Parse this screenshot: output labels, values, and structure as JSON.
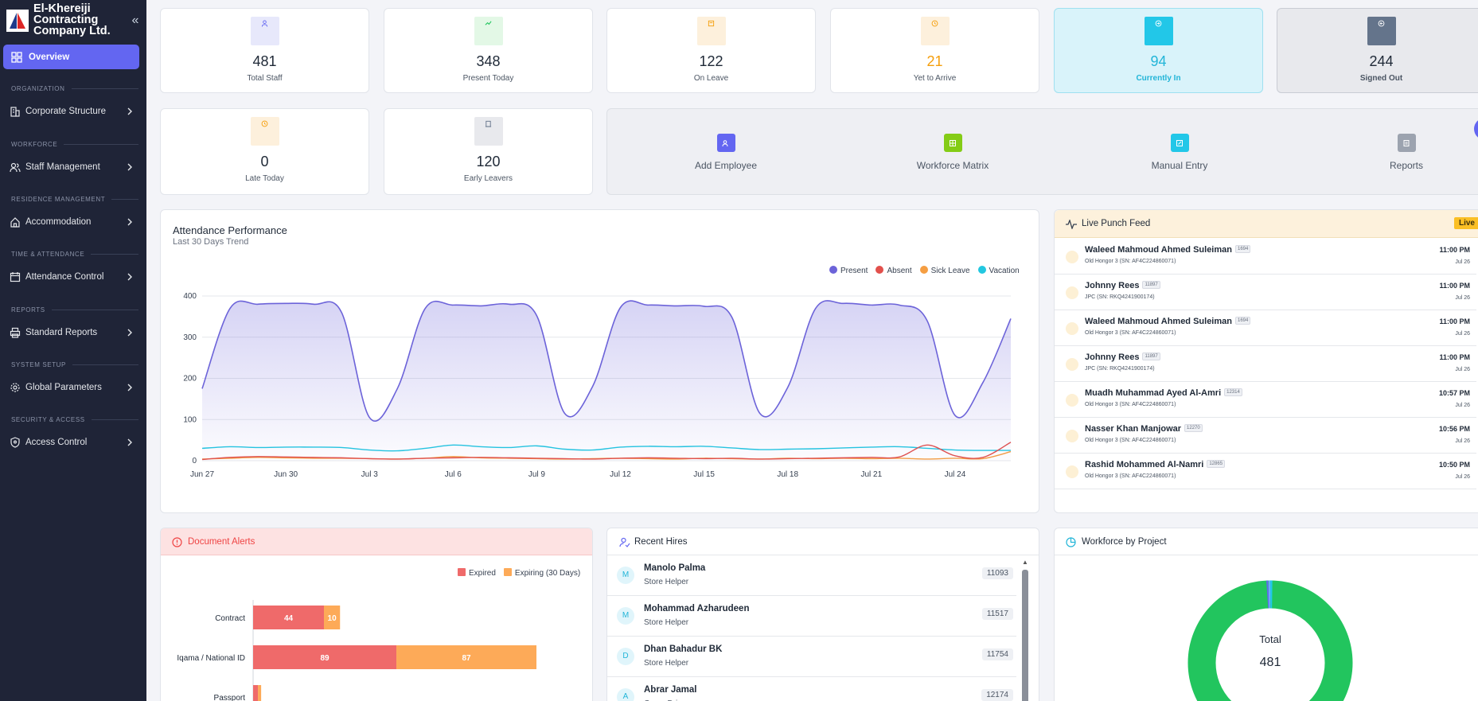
{
  "brand": {
    "name": "El-Khereiji Contracting Company Ltd."
  },
  "sidebar": {
    "active": {
      "label": "Overview",
      "icon": "grid-icon"
    },
    "sections": [
      {
        "heading": "ORGANIZATION",
        "item": "Corporate Structure",
        "icon": "building-icon"
      },
      {
        "heading": "WORKFORCE",
        "item": "Staff Management",
        "icon": "users-icon"
      },
      {
        "heading": "RESIDENCE MANAGEMENT",
        "item": "Accommodation",
        "icon": "home-icon"
      },
      {
        "heading": "TIME & ATTENDANCE",
        "item": "Attendance Control",
        "icon": "calendar-icon"
      },
      {
        "heading": "REPORTS",
        "item": "Standard Reports",
        "icon": "printer-icon"
      },
      {
        "heading": "SYSTEM SETUP",
        "item": "Global Parameters",
        "icon": "gear-icon"
      },
      {
        "heading": "SECURITY & ACCESS",
        "item": "Access Control",
        "icon": "shield-icon"
      }
    ]
  },
  "stats": [
    {
      "value": "481",
      "label": "Total Staff",
      "icon": "user-icon",
      "color": "#6366f1"
    },
    {
      "value": "348",
      "label": "Present Today",
      "icon": "trend-icon",
      "color": "#22c55e"
    },
    {
      "value": "122",
      "label": "On Leave",
      "icon": "doc-icon",
      "color": "#f59e0b"
    },
    {
      "value": "21",
      "label": "Yet to Arrive",
      "icon": "clock-icon",
      "color": "#f59e0b"
    },
    {
      "value": "94",
      "label": "Currently In",
      "icon": "login-icon",
      "color": "#22c7e8"
    },
    {
      "value": "244",
      "label": "Signed Out",
      "icon": "logout-icon",
      "color": "#64748b"
    },
    {
      "value": "0",
      "label": "Late Today",
      "icon": "clock-icon",
      "color": "#f59e0b"
    },
    {
      "value": "120",
      "label": "Early Leavers",
      "icon": "door-icon",
      "color": "#64748b"
    }
  ],
  "quick_actions": [
    {
      "label": "Add Employee",
      "icon": "user-plus-icon",
      "color": "#6366f1"
    },
    {
      "label": "Workforce Matrix",
      "icon": "grid-icon",
      "color": "#84cc16"
    },
    {
      "label": "Manual Entry",
      "icon": "edit-icon",
      "color": "#22c7e8"
    },
    {
      "label": "Reports",
      "icon": "report-icon",
      "color": "#9ca3af"
    }
  ],
  "attendance": {
    "title": "Attendance Performance",
    "subtitle": "Last 30 Days Trend"
  },
  "chart_data": {
    "type": "area",
    "x": [
      "Jun 27",
      "Jun 28",
      "Jun 29",
      "Jun 30",
      "Jul 1",
      "Jul 2",
      "Jul 3",
      "Jul 4",
      "Jul 5",
      "Jul 6",
      "Jul 7",
      "Jul 8",
      "Jul 9",
      "Jul 10",
      "Jul 11",
      "Jul 12",
      "Jul 13",
      "Jul 14",
      "Jul 15",
      "Jul 16",
      "Jul 17",
      "Jul 18",
      "Jul 19",
      "Jul 20",
      "Jul 21",
      "Jul 22",
      "Jul 23",
      "Jul 24",
      "Jul 25",
      "Jul 26"
    ],
    "xticks": [
      "Jun 27",
      "Jun 30",
      "Jul 3",
      "Jul 6",
      "Jul 9",
      "Jul 12",
      "Jul 15",
      "Jul 18",
      "Jul 21",
      "Jul 24"
    ],
    "yticks": [
      0,
      100,
      200,
      300,
      400
    ],
    "ylim": [
      0,
      400
    ],
    "series": [
      {
        "name": "Present",
        "color": "#6c63d9",
        "values": [
          175,
          370,
          380,
          382,
          380,
          360,
          105,
          175,
          370,
          378,
          376,
          380,
          352,
          115,
          180,
          372,
          378,
          376,
          375,
          348,
          115,
          178,
          370,
          382,
          378,
          378,
          340,
          110,
          190,
          345
        ]
      },
      {
        "name": "Absent",
        "color": "#e2504c",
        "values": [
          3,
          8,
          10,
          9,
          8,
          7,
          5,
          4,
          6,
          7,
          8,
          7,
          6,
          5,
          4,
          6,
          7,
          6,
          5,
          6,
          4,
          5,
          6,
          7,
          8,
          9,
          38,
          12,
          8,
          45
        ]
      },
      {
        "name": "Sick Leave",
        "color": "#f59e42",
        "values": [
          4,
          6,
          8,
          7,
          6,
          6,
          5,
          4,
          6,
          10,
          7,
          6,
          5,
          4,
          5,
          6,
          5,
          4,
          6,
          5,
          4,
          6,
          5,
          6,
          5,
          6,
          4,
          6,
          5,
          22
        ]
      },
      {
        "name": "Vacation",
        "color": "#22c7e0",
        "values": [
          30,
          34,
          32,
          33,
          33,
          32,
          26,
          24,
          30,
          38,
          34,
          32,
          36,
          28,
          26,
          33,
          35,
          34,
          35,
          31,
          27,
          28,
          29,
          31,
          33,
          34,
          30,
          26,
          25,
          25
        ]
      }
    ]
  },
  "live_feed": {
    "title": "Live Punch Feed",
    "badge": "Live",
    "rows": [
      {
        "name": "Waleed Mahmoud Ahmed Suleiman",
        "id": "1694",
        "device": "Old Hongor 3  (SN: AF4C224860071)",
        "time": "11:00 PM",
        "date": "Jul 26"
      },
      {
        "name": "Johnny Rees",
        "id": "11897",
        "device": "JPC  (SN: RKQ4241900174)",
        "time": "11:00 PM",
        "date": "Jul 26"
      },
      {
        "name": "Waleed Mahmoud Ahmed Suleiman",
        "id": "1694",
        "device": "Old Hongor 3  (SN: AF4C224860071)",
        "time": "11:00 PM",
        "date": "Jul 26"
      },
      {
        "name": "Johnny Rees",
        "id": "11897",
        "device": "JPC  (SN: RKQ4241900174)",
        "time": "11:00 PM",
        "date": "Jul 26"
      },
      {
        "name": "Muadh Muhammad Ayed Al-Amri",
        "id": "12314",
        "device": "Old Hongor 3  (SN: AF4C224860071)",
        "time": "10:57 PM",
        "date": "Jul 26"
      },
      {
        "name": "Nasser Khan Manjowar",
        "id": "12270",
        "device": "Old Hongor 3  (SN: AF4C224860071)",
        "time": "10:56 PM",
        "date": "Jul 26"
      },
      {
        "name": "Rashid Mohammed Al-Namri",
        "id": "12865",
        "device": "Old Hongor 3  (SN: AF4C224860071)",
        "time": "10:50 PM",
        "date": "Jul 26"
      }
    ]
  },
  "document_alerts": {
    "title": "Document Alerts",
    "legend": [
      "Expired",
      "Expiring (30 Days)"
    ],
    "colors": {
      "expired": "#ef6a6a",
      "expiring": "#fdaa58"
    },
    "rows": [
      {
        "label": "Contract",
        "expired": 44,
        "expiring": 10
      },
      {
        "label": "Iqama / National ID",
        "expired": 89,
        "expiring": 87
      },
      {
        "label": "Passport",
        "expired": 3,
        "expiring": 2
      }
    ],
    "max": 176
  },
  "recent_hires": {
    "title": "Recent Hires",
    "rows": [
      {
        "initial": "M",
        "name": "Manolo Palma",
        "role": "Store Helper",
        "id": "11093"
      },
      {
        "initial": "M",
        "name": "Mohammad Azharudeen",
        "role": "Store Helper",
        "id": "11517"
      },
      {
        "initial": "D",
        "name": "Dhan Bahadur BK",
        "role": "Store Helper",
        "id": "11754"
      },
      {
        "initial": "A",
        "name": "Abrar Jamal",
        "role": "Camp Driver",
        "id": "12174"
      }
    ]
  },
  "workforce_project": {
    "title": "Workforce by Project",
    "center_label": "Total",
    "center_value": "481"
  }
}
